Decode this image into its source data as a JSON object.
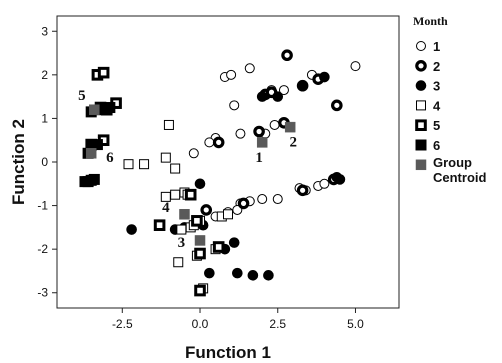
{
  "chart_data": {
    "type": "scatter",
    "xlabel": "Function 1",
    "ylabel": "Function 2",
    "xlim": [
      -4.6,
      6.4
    ],
    "ylim": [
      -3.35,
      3.35
    ],
    "xticks": [
      -2.5,
      0.0,
      2.5,
      5.0
    ],
    "xtick_labels": [
      "-2.5",
      "0.0",
      "2.5",
      "5.0"
    ],
    "yticks": [
      3,
      2,
      1,
      0,
      -1,
      -2,
      -3
    ],
    "ytick_labels": [
      "3",
      "2",
      "1",
      "0",
      "-1",
      "-2",
      "-3"
    ],
    "grid": false,
    "legend": {
      "title": "Month",
      "placement": "right",
      "entries": [
        {
          "label": "1",
          "marker": "circle-open"
        },
        {
          "label": "2",
          "marker": "circle-thick"
        },
        {
          "label": "3",
          "marker": "circle-filled"
        },
        {
          "label": "4",
          "marker": "square-open"
        },
        {
          "label": "5",
          "marker": "square-thick"
        },
        {
          "label": "6",
          "marker": "square-filled"
        },
        {
          "label": "Group Centroid",
          "marker": "centroid"
        }
      ]
    },
    "series": [
      {
        "name": "1",
        "marker": "circle-open",
        "points": [
          [
            0.8,
            1.95
          ],
          [
            1.0,
            2.0
          ],
          [
            1.6,
            2.15
          ],
          [
            1.1,
            1.3
          ],
          [
            2.3,
            1.65
          ],
          [
            2.7,
            1.65
          ],
          [
            3.6,
            2.0
          ],
          [
            5.0,
            2.2
          ],
          [
            1.9,
            0.7
          ],
          [
            2.1,
            0.65
          ],
          [
            2.4,
            0.85
          ],
          [
            1.3,
            0.65
          ],
          [
            0.5,
            0.55
          ],
          [
            0.3,
            0.45
          ],
          [
            -0.2,
            0.2
          ],
          [
            1.3,
            -0.95
          ],
          [
            1.6,
            -0.9
          ],
          [
            2.0,
            -0.85
          ],
          [
            3.2,
            -0.6
          ],
          [
            3.4,
            -0.65
          ],
          [
            3.8,
            -0.55
          ],
          [
            4.0,
            -0.5
          ],
          [
            0.5,
            -1.25
          ],
          [
            0.9,
            -1.15
          ],
          [
            1.2,
            -1.1
          ],
          [
            2.5,
            -0.85
          ]
        ]
      },
      {
        "name": "2",
        "marker": "circle-thick",
        "points": [
          [
            2.8,
            2.45
          ],
          [
            2.1,
            1.55
          ],
          [
            2.3,
            1.6
          ],
          [
            3.3,
            1.75
          ],
          [
            3.8,
            1.9
          ],
          [
            4.4,
            1.3
          ],
          [
            2.7,
            0.9
          ],
          [
            1.9,
            0.7
          ],
          [
            0.6,
            0.45
          ],
          [
            3.3,
            -0.65
          ],
          [
            4.3,
            -0.4
          ],
          [
            1.4,
            -0.95
          ],
          [
            0.2,
            -1.1
          ]
        ]
      },
      {
        "name": "3",
        "marker": "circle-filled",
        "points": [
          [
            2.0,
            1.5
          ],
          [
            2.5,
            1.5
          ],
          [
            3.3,
            1.75
          ],
          [
            4.0,
            1.95
          ],
          [
            0.0,
            -0.5
          ],
          [
            -2.2,
            -1.55
          ],
          [
            -0.8,
            -1.55
          ],
          [
            -0.5,
            -1.5
          ],
          [
            0.1,
            -1.45
          ],
          [
            0.8,
            -2.0
          ],
          [
            1.1,
            -1.85
          ],
          [
            1.2,
            -2.55
          ],
          [
            2.2,
            -2.6
          ],
          [
            1.7,
            -2.6
          ],
          [
            4.4,
            -0.35
          ],
          [
            4.5,
            -0.4
          ],
          [
            0.3,
            -2.55
          ]
        ]
      },
      {
        "name": "4",
        "marker": "square-open",
        "points": [
          [
            -1.0,
            0.85
          ],
          [
            -1.8,
            -0.05
          ],
          [
            -2.3,
            -0.05
          ],
          [
            -1.1,
            0.1
          ],
          [
            -0.8,
            -0.15
          ],
          [
            -0.5,
            -0.7
          ],
          [
            -0.4,
            -0.75
          ],
          [
            -0.8,
            -0.75
          ],
          [
            -1.1,
            -0.8
          ],
          [
            0.0,
            -1.35
          ],
          [
            0.7,
            -1.25
          ],
          [
            0.9,
            -1.2
          ],
          [
            -0.6,
            -1.55
          ],
          [
            -0.3,
            -1.5
          ],
          [
            -0.2,
            -1.45
          ],
          [
            0.5,
            -2.0
          ],
          [
            -0.7,
            -2.3
          ],
          [
            -0.1,
            -2.15
          ],
          [
            0.0,
            -2.95
          ],
          [
            0.1,
            -2.9
          ]
        ]
      },
      {
        "name": "5",
        "marker": "square-thick",
        "points": [
          [
            -3.3,
            2.0
          ],
          [
            -3.1,
            2.05
          ],
          [
            -2.7,
            1.35
          ],
          [
            -3.2,
            1.25
          ],
          [
            -3.0,
            1.2
          ],
          [
            -3.1,
            0.5
          ],
          [
            -3.5,
            0.4
          ],
          [
            -0.3,
            -0.75
          ],
          [
            -0.1,
            -1.35
          ],
          [
            -1.3,
            -1.45
          ],
          [
            0.0,
            -2.1
          ],
          [
            0.6,
            -1.95
          ],
          [
            0.0,
            -2.95
          ]
        ]
      },
      {
        "name": "6",
        "marker": "square-filled",
        "points": [
          [
            -3.5,
            1.15
          ],
          [
            -3.2,
            1.2
          ],
          [
            -2.9,
            1.25
          ],
          [
            -3.5,
            0.4
          ],
          [
            -3.3,
            0.4
          ],
          [
            -3.6,
            0.2
          ],
          [
            -3.7,
            -0.45
          ],
          [
            -3.6,
            -0.45
          ],
          [
            -3.5,
            -0.42
          ],
          [
            -3.4,
            -0.4
          ]
        ]
      },
      {
        "name": "Group Centroid",
        "marker": "centroid",
        "points": [
          [
            2.0,
            0.45
          ],
          [
            2.9,
            0.8
          ],
          [
            -3.4,
            1.2
          ],
          [
            -3.5,
            0.2
          ],
          [
            -0.5,
            -1.2
          ],
          [
            0.0,
            -1.8
          ]
        ]
      }
    ],
    "annotations": [
      {
        "text": "5",
        "x": -3.8,
        "y": 1.42
      },
      {
        "text": "6",
        "x": -2.9,
        "y": 0.0
      },
      {
        "text": "1",
        "x": 1.9,
        "y": 0.0
      },
      {
        "text": "2",
        "x": 3.0,
        "y": 0.35
      },
      {
        "text": "4",
        "x": -1.1,
        "y": -1.15
      },
      {
        "text": "3",
        "x": -0.6,
        "y": -1.95
      }
    ],
    "colors": {
      "marker": "#000000",
      "centroid": "#5a5a5a"
    }
  }
}
